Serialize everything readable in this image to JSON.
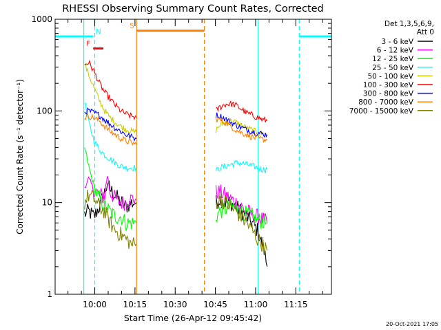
{
  "chart_data": {
    "type": "line",
    "title": "RHESSI Observing Summary Count Rates, Corrected",
    "xlabel": "Start Time (26-Apr-12 09:45:42)",
    "ylabel": "Corrected Count Rate (s⁻¹ detector⁻¹)",
    "y_scale": "log",
    "ylim": [
      1,
      1000
    ],
    "xlim_minutes_after_start": [
      -0.5,
      102.6
    ],
    "x_ticks": [
      {
        "label": "10:00",
        "minutes": 14.3
      },
      {
        "label": "10:15",
        "minutes": 29.3
      },
      {
        "label": "10:30",
        "minutes": 44.3
      },
      {
        "label": "10:45",
        "minutes": 59.3
      },
      {
        "label": "11:00",
        "minutes": 74.3
      },
      {
        "label": "11:15",
        "minutes": 89.3
      }
    ],
    "y_ticks": [
      {
        "label": "1",
        "value": 1
      },
      {
        "label": "10",
        "value": 10
      },
      {
        "label": "100",
        "value": 100
      },
      {
        "label": "1000",
        "value": 1000
      }
    ],
    "legend_header": [
      "Det 1,3,5,6,9,",
      "Att 0"
    ],
    "legend_position": "right",
    "series": [
      {
        "name": "3 - 6 keV",
        "color": "#000000",
        "segments": [
          [
            [
              10.5,
              7.5
            ],
            [
              12,
              8
            ],
            [
              14,
              7
            ],
            [
              16,
              9
            ],
            [
              17,
              11
            ],
            [
              18,
              13
            ],
            [
              19,
              16
            ],
            [
              20,
              14
            ],
            [
              22,
              12
            ],
            [
              24,
              10
            ],
            [
              26,
              9
            ],
            [
              28,
              10
            ],
            [
              29.8,
              10
            ]
          ],
          [
            [
              59.5,
              10
            ],
            [
              61,
              11
            ],
            [
              63,
              10
            ],
            [
              65,
              10
            ],
            [
              67,
              9
            ],
            [
              69,
              8
            ],
            [
              71,
              7
            ],
            [
              73,
              6
            ],
            [
              75,
              5
            ],
            [
              76,
              4
            ],
            [
              77.5,
              3
            ],
            [
              78.6,
              2
            ]
          ]
        ]
      },
      {
        "name": "6 - 12 keV",
        "color": "#ff00ff",
        "segments": [
          [
            [
              10.5,
              15
            ],
            [
              12,
              18
            ],
            [
              14,
              14
            ],
            [
              16,
              12
            ],
            [
              18,
              12
            ],
            [
              19,
              20
            ],
            [
              20,
              13
            ],
            [
              22,
              11
            ],
            [
              24,
              10
            ],
            [
              26,
              10
            ],
            [
              28,
              11
            ],
            [
              29.8,
              11
            ]
          ],
          [
            [
              59.5,
              13
            ],
            [
              61,
              13
            ],
            [
              63,
              12
            ],
            [
              65,
              11
            ],
            [
              67,
              10
            ],
            [
              69,
              9
            ],
            [
              71,
              8
            ],
            [
              73,
              7.5
            ],
            [
              75,
              7
            ],
            [
              77,
              6.5
            ],
            [
              78.6,
              6
            ]
          ]
        ]
      },
      {
        "name": "12 - 25 keV",
        "color": "#00ff00",
        "segments": [
          [
            [
              10.5,
              40
            ],
            [
              12,
              25
            ],
            [
              14,
              15
            ],
            [
              16,
              11
            ],
            [
              18,
              9
            ],
            [
              20,
              8
            ],
            [
              22,
              7
            ],
            [
              24,
              7
            ],
            [
              26,
              6
            ],
            [
              28,
              6
            ],
            [
              29.8,
              6
            ]
          ],
          [
            [
              59.5,
              7
            ],
            [
              61,
              8
            ],
            [
              63,
              8.5
            ],
            [
              65,
              9
            ],
            [
              67,
              8.5
            ],
            [
              69,
              8
            ],
            [
              71,
              7.5
            ],
            [
              73,
              7
            ],
            [
              75,
              6.5
            ],
            [
              77,
              6.2
            ],
            [
              78.6,
              6
            ]
          ]
        ]
      },
      {
        "name": "25 - 50 keV",
        "color": "#00ffff",
        "segments": [
          [
            [
              10.5,
              130
            ],
            [
              12,
              75
            ],
            [
              14,
              48
            ],
            [
              16,
              38
            ],
            [
              18,
              33
            ],
            [
              20,
              30
            ],
            [
              22,
              27
            ],
            [
              24,
              25
            ],
            [
              26,
              24
            ],
            [
              28,
              24
            ],
            [
              29.8,
              24
            ]
          ],
          [
            [
              59.5,
              22
            ],
            [
              61,
              24
            ],
            [
              63,
              25
            ],
            [
              65,
              26
            ],
            [
              67,
              27
            ],
            [
              69,
              27
            ],
            [
              71,
              26
            ],
            [
              73,
              25
            ],
            [
              75,
              24
            ],
            [
              77,
              23
            ],
            [
              78.6,
              23
            ]
          ]
        ]
      },
      {
        "name": "50 - 100 keV",
        "color": "#cccc00",
        "segments": [
          [
            [
              10.5,
              330
            ],
            [
              12,
              250
            ],
            [
              14,
              180
            ],
            [
              16,
              130
            ],
            [
              18,
              100
            ],
            [
              20,
              85
            ],
            [
              22,
              75
            ],
            [
              24,
              68
            ],
            [
              26,
              63
            ],
            [
              28,
              60
            ],
            [
              29.8,
              58
            ]
          ],
          [
            [
              59.5,
              62
            ],
            [
              61,
              70
            ],
            [
              63,
              75
            ],
            [
              65,
              78
            ],
            [
              67,
              75
            ],
            [
              69,
              70
            ],
            [
              71,
              65
            ],
            [
              73,
              62
            ],
            [
              75,
              58
            ],
            [
              77,
              56
            ],
            [
              78.6,
              55
            ]
          ]
        ]
      },
      {
        "name": "100 - 300 keV",
        "color": "#ff0000",
        "segments": [
          [
            [
              10.5,
              320
            ],
            [
              12,
              340
            ],
            [
              14,
              270
            ],
            [
              16,
              200
            ],
            [
              18,
              160
            ],
            [
              20,
              135
            ],
            [
              22,
              115
            ],
            [
              24,
              100
            ],
            [
              26,
              92
            ],
            [
              28,
              88
            ],
            [
              29.8,
              85
            ]
          ],
          [
            [
              59.5,
              100
            ],
            [
              61,
              110
            ],
            [
              63,
              118
            ],
            [
              65,
              120
            ],
            [
              67,
              115
            ],
            [
              69,
              105
            ],
            [
              71,
              95
            ],
            [
              73,
              90
            ],
            [
              75,
              85
            ],
            [
              77,
              80
            ],
            [
              78.6,
              78
            ]
          ]
        ]
      },
      {
        "name": "300 - 800 keV",
        "color": "#0000ff",
        "segments": [
          [
            [
              10.5,
              98
            ],
            [
              12,
              100
            ],
            [
              14,
              95
            ],
            [
              16,
              90
            ],
            [
              18,
              80
            ],
            [
              20,
              72
            ],
            [
              22,
              65
            ],
            [
              24,
              60
            ],
            [
              26,
              55
            ],
            [
              28,
              52
            ],
            [
              29.8,
              50
            ]
          ],
          [
            [
              59.5,
              90
            ],
            [
              61,
              88
            ],
            [
              63,
              82
            ],
            [
              65,
              75
            ],
            [
              67,
              70
            ],
            [
              69,
              66
            ],
            [
              71,
              62
            ],
            [
              73,
              60
            ],
            [
              75,
              58
            ],
            [
              77,
              56
            ],
            [
              78.6,
              55
            ]
          ]
        ]
      },
      {
        "name": "800 - 7000 keV",
        "color": "#ff7f00",
        "segments": [
          [
            [
              10.5,
              85
            ],
            [
              12,
              88
            ],
            [
              14,
              84
            ],
            [
              16,
              78
            ],
            [
              18,
              68
            ],
            [
              20,
              60
            ],
            [
              22,
              55
            ],
            [
              24,
              50
            ],
            [
              26,
              47
            ],
            [
              28,
              45
            ],
            [
              29.8,
              43
            ]
          ],
          [
            [
              59.5,
              82
            ],
            [
              61,
              80
            ],
            [
              63,
              75
            ],
            [
              65,
              68
            ],
            [
              67,
              62
            ],
            [
              69,
              58
            ],
            [
              71,
              55
            ],
            [
              73,
              52
            ],
            [
              75,
              50
            ],
            [
              77,
              49
            ],
            [
              78.6,
              48
            ]
          ]
        ]
      },
      {
        "name": "7000 - 15000 keV",
        "color": "#808000",
        "segments": [
          [
            [
              10.5,
              10
            ],
            [
              12,
              12
            ],
            [
              14,
              11
            ],
            [
              16,
              9
            ],
            [
              18,
              8
            ],
            [
              20,
              6
            ],
            [
              22,
              5
            ],
            [
              24,
              4.5
            ],
            [
              26,
              4
            ],
            [
              28,
              3.5
            ],
            [
              29.8,
              3.5
            ]
          ],
          [
            [
              59.5,
              10
            ],
            [
              61,
              11
            ],
            [
              63,
              10
            ],
            [
              65,
              9
            ],
            [
              67,
              8
            ],
            [
              69,
              7
            ],
            [
              71,
              6
            ],
            [
              73,
              5
            ],
            [
              75,
              4
            ],
            [
              77,
              3.5
            ],
            [
              78.6,
              3
            ]
          ]
        ]
      }
    ],
    "flags": [
      {
        "label": "N",
        "color": "#00ffff",
        "value": 650,
        "ranges": [
          [
            -0.5,
            13.7
          ],
          [
            90.6,
            102.6
          ]
        ]
      },
      {
        "label": "F",
        "color": "#ff0000",
        "value": 480,
        "ranges": [
          [
            13.7,
            17.5
          ]
        ]
      },
      {
        "label": "S",
        "color": "#ff7f00",
        "value": 750,
        "ranges": [
          [
            29.9,
            55.2
          ]
        ]
      }
    ],
    "vertical_markers": [
      {
        "minutes": 10.2,
        "color": "#00ffff",
        "style": "solid"
      },
      {
        "minutes": 14.3,
        "color": "#00ffff",
        "style": "dashed"
      },
      {
        "minutes": 29.9,
        "color": "#ff7f00",
        "style": "solid"
      },
      {
        "minutes": 55.2,
        "color": "#ff7f00",
        "style": "dashed"
      },
      {
        "minutes": 75.3,
        "color": "#00ffff",
        "style": "solid"
      },
      {
        "minutes": 90.6,
        "color": "#00ffff",
        "style": "dashed"
      }
    ],
    "footer_date": "20-Oct-2021 17:05"
  }
}
